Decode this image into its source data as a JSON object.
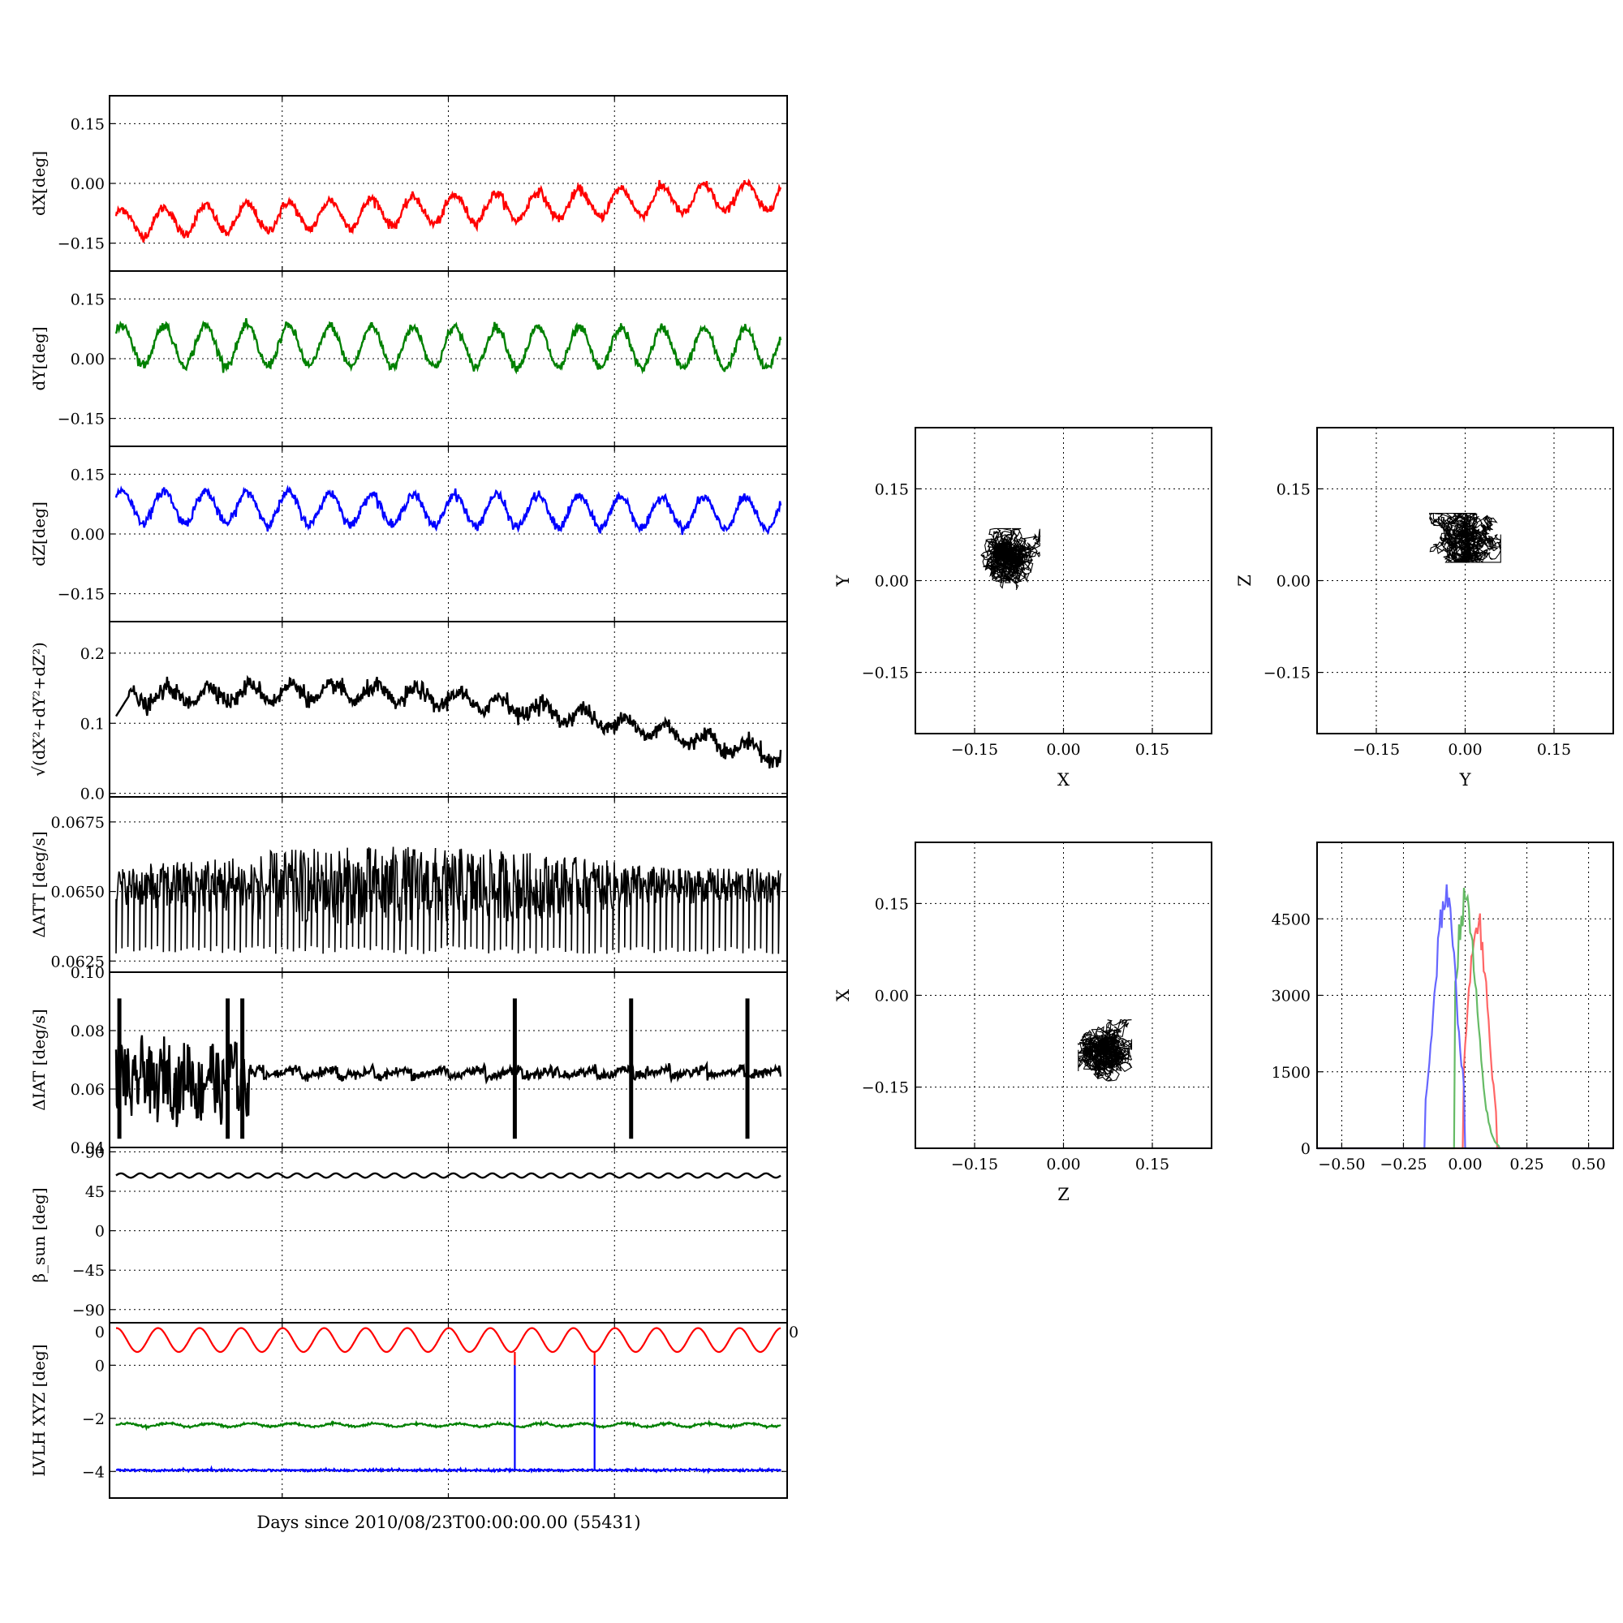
{
  "xlabel": "Days since 2010/08/23T00:00:00.00 (55431)",
  "colors": {
    "x": "#ff0000",
    "y": "#008000",
    "z": "#0000ff",
    "k": "#000000"
  },
  "timeseries": [
    {
      "id": "dX",
      "ylabel": "dX[deg]",
      "ylim": [
        -0.22,
        0.22
      ],
      "ticks": [
        0.15,
        0.0,
        -0.15
      ],
      "ticklabels": [
        "0.15",
        "0.00",
        "−0.15"
      ],
      "color": "#ff0000",
      "shape": "sine",
      "base": -0.1,
      "amp": 0.035,
      "trend": 0.07,
      "period": 16,
      "noise": 0.006
    },
    {
      "id": "dY",
      "ylabel": "dY[deg]",
      "ylim": [
        -0.22,
        0.22
      ],
      "ticks": [
        0.15,
        0.0,
        -0.15
      ],
      "ticklabels": [
        "0.15",
        "0.00",
        "−0.15"
      ],
      "color": "#008000",
      "shape": "sine",
      "base": 0.035,
      "amp": 0.05,
      "trend": -0.01,
      "period": 16,
      "noise": 0.006
    },
    {
      "id": "dZ",
      "ylabel": "dZ[deg]",
      "ylim": [
        -0.22,
        0.22
      ],
      "ticks": [
        0.15,
        0.0,
        -0.15
      ],
      "ticklabels": [
        "0.15",
        "0.00",
        "−0.15"
      ],
      "color": "#0000ff",
      "shape": "sine",
      "base": 0.07,
      "amp": 0.04,
      "trend": -0.02,
      "period": 16,
      "noise": 0.006
    },
    {
      "id": "norm",
      "ylabel": "√(dX²+dY²+dZ²)",
      "ylim": [
        -0.005,
        0.245
      ],
      "ticks": [
        0.2,
        0.1,
        0.0
      ],
      "ticklabels": [
        "0.2",
        "0.1",
        "0.0"
      ],
      "color": "#000000",
      "shape": "norm",
      "noise": 0.006
    },
    {
      "id": "datt",
      "ylabel": "ΔATT [deg/s]",
      "ylim": [
        0.0621,
        0.0684
      ],
      "ticks": [
        0.0675,
        0.065,
        0.0625
      ],
      "ticklabels": [
        "0.0675",
        "0.0650",
        "0.0625"
      ],
      "color": "#000000",
      "shape": "datt"
    },
    {
      "id": "diat",
      "ylabel": "ΔIAT [deg/s]",
      "ylim": [
        0.04,
        0.1
      ],
      "ticks": [
        0.1,
        0.08,
        0.06,
        0.04
      ],
      "ticklabels": [
        "0.10",
        "0.08",
        "0.06",
        "0.04"
      ],
      "color": "#000000",
      "shape": "diat"
    },
    {
      "id": "beta",
      "ylabel": "β_sun [deg]",
      "ylim": [
        -105,
        95
      ],
      "ticks": [
        90,
        45,
        0,
        -45,
        -90
      ],
      "ticklabels": [
        "90",
        "45",
        "0",
        "−45",
        "−90"
      ],
      "color": "#000000",
      "shape": "beta"
    },
    {
      "id": "lvlh",
      "ylabel": "LVLH XYZ [deg]",
      "ylim": [
        -5.0,
        1.6
      ],
      "ticks": [
        0,
        -2,
        -4
      ],
      "ticklabels": [
        "0",
        "−2",
        "−4"
      ],
      "top_tick_label": "0",
      "color": "#000000",
      "shape": "lvlh"
    }
  ],
  "right_edge_label": "0",
  "chart_data": [
    {
      "type": "scatter",
      "xlabel": "X",
      "ylabel": "Y",
      "xlim": [
        -0.25,
        0.25
      ],
      "ylim": [
        -0.25,
        0.25
      ],
      "ticks": [
        -0.15,
        0.0,
        0.15
      ],
      "ticklabels": [
        "−0.15",
        "0.00",
        "0.15"
      ],
      "center": [
        -0.09,
        0.035
      ],
      "spread": [
        0.05,
        0.05
      ]
    },
    {
      "type": "scatter",
      "xlabel": "Y",
      "ylabel": "Z",
      "xlim": [
        -0.25,
        0.25
      ],
      "ylim": [
        -0.25,
        0.25
      ],
      "ticks": [
        -0.15,
        0.0,
        0.15
      ],
      "ticklabels": [
        "−0.15",
        "0.00",
        "0.15"
      ],
      "center": [
        0.0,
        0.07
      ],
      "spread": [
        0.06,
        0.04
      ]
    },
    {
      "type": "scatter",
      "xlabel": "Z",
      "ylabel": "X",
      "xlim": [
        -0.25,
        0.25
      ],
      "ylim": [
        -0.25,
        0.25
      ],
      "ticks": [
        -0.15,
        0.0,
        0.15
      ],
      "ticklabels": [
        "−0.15",
        "0.00",
        "0.15"
      ],
      "center": [
        0.07,
        -0.09
      ],
      "spread": [
        0.045,
        0.05
      ]
    },
    {
      "type": "line",
      "xlabel": "",
      "ylabel": "",
      "xlim": [
        -0.6,
        0.6
      ],
      "ylim": [
        0,
        6000
      ],
      "xticks": [
        -0.5,
        -0.25,
        0.0,
        0.25,
        0.5
      ],
      "xticklabels": [
        "−0.50",
        "−0.25",
        "0.00",
        "0.25",
        "0.50"
      ],
      "yticks": [
        0,
        1500,
        3000,
        4500
      ],
      "yticklabels": [
        "0",
        "1500",
        "3000",
        "4500"
      ],
      "series": [
        {
          "color": "#ff6666",
          "mean": 0.05,
          "sd": 0.04,
          "peak": 4800,
          "lo": -0.01,
          "hi": 0.13
        },
        {
          "color": "#66bb66",
          "mean": 0.0,
          "sd": 0.045,
          "peak": 5200,
          "lo": -0.04,
          "hi": 0.14
        },
        {
          "color": "#6666ff",
          "mean": -0.08,
          "sd": 0.045,
          "peak": 5300,
          "lo": -0.16,
          "hi": 0.0
        }
      ]
    }
  ]
}
